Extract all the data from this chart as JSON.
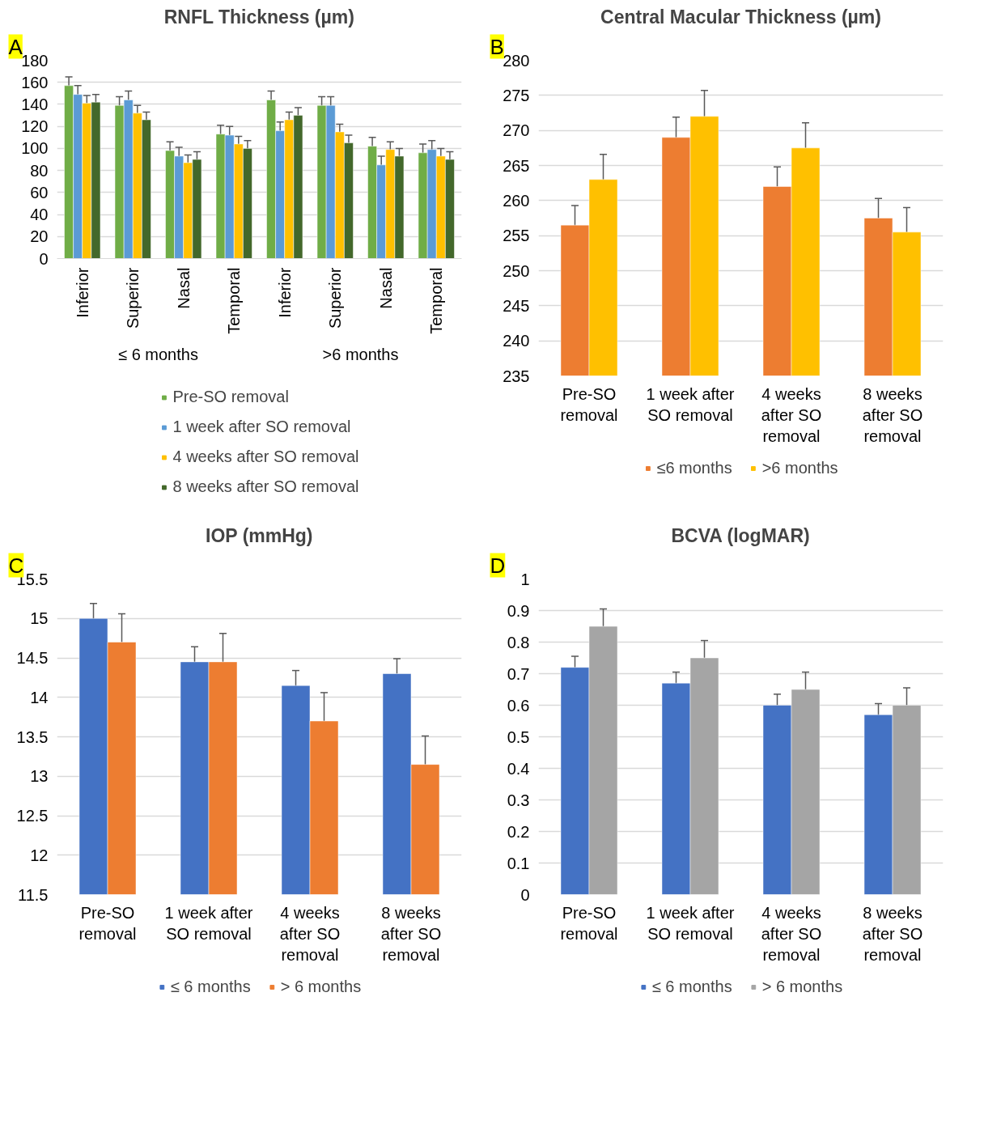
{
  "chart_data": [
    {
      "type": "bar",
      "title": "RNFL Thickness (µm)",
      "categories": [
        "Inferior",
        "Superior",
        "Nasal",
        "Temporal",
        "Inferior",
        "Superior",
        "Nasal",
        "Temporal"
      ],
      "annotations": [
        "A",
        "≤ 6 months",
        ">6 months"
      ],
      "ylim": [
        0,
        180
      ],
      "yticks": [
        0,
        20,
        40,
        60,
        80,
        100,
        120,
        140,
        160,
        180
      ],
      "grid": "y",
      "legend": "bottom",
      "series": [
        {
          "name": "Pre-SO removal",
          "color": "#70ad47",
          "values": [
            157,
            139,
            98,
            113,
            144,
            139,
            102,
            96
          ],
          "errors": [
            8,
            8,
            8,
            8,
            8,
            8,
            8,
            8
          ]
        },
        {
          "name": "1 week after SO removal",
          "color": "#5b9bd5",
          "values": [
            149,
            144,
            93,
            112,
            116,
            139,
            85,
            99
          ],
          "errors": [
            8,
            8,
            8,
            8,
            8,
            8,
            8,
            8
          ]
        },
        {
          "name": "4 weeks after SO removal",
          "color": "#ffc000",
          "values": [
            141,
            132,
            87,
            104,
            126,
            115,
            99,
            93
          ],
          "errors": [
            7,
            7,
            7,
            7,
            7,
            7,
            7,
            7
          ]
        },
        {
          "name": "8 weeks after SO removal",
          "color": "#43682b",
          "values": [
            142,
            126,
            90,
            100,
            130,
            105,
            93,
            90
          ],
          "errors": [
            7,
            7,
            7,
            7,
            7,
            7,
            7,
            7
          ]
        }
      ]
    },
    {
      "type": "bar",
      "title": "Central Macular Thickness (µm)",
      "categories": [
        "Pre-SO removal",
        "1 week after SO removal",
        "4 weeks after SO removal",
        "8 weeks after SO removal"
      ],
      "annotations": [
        "B"
      ],
      "ylim": [
        235,
        280
      ],
      "yticks": [
        235,
        240,
        245,
        250,
        255,
        260,
        265,
        270,
        275,
        280
      ],
      "grid": "y",
      "legend": "bottom",
      "series": [
        {
          "name": "≤6 months",
          "color": "#ed7d31",
          "values": [
            256.5,
            269,
            262,
            257.5
          ],
          "errors": [
            2.8,
            2.9,
            2.8,
            2.8
          ]
        },
        {
          "name": ">6 months",
          "color": "#ffc000",
          "values": [
            263,
            272,
            267.5,
            255.5
          ],
          "errors": [
            3.6,
            3.7,
            3.6,
            3.5
          ]
        }
      ]
    },
    {
      "type": "bar",
      "title": "IOP (mmHg)",
      "categories": [
        "Pre-SO removal",
        "1 week after SO removal",
        "4 weeks after SO removal",
        "8 weeks after SO removal"
      ],
      "annotations": [
        "C"
      ],
      "ylim": [
        11.5,
        15.5
      ],
      "yticks": [
        11.5,
        12,
        12.5,
        13,
        13.5,
        14,
        14.5,
        15,
        15.5
      ],
      "grid": "y",
      "legend": "bottom",
      "series": [
        {
          "name": "≤ 6 months",
          "color": "#4472c4",
          "values": [
            15,
            14.45,
            14.15,
            14.3
          ],
          "errors": [
            0.19,
            0.19,
            0.19,
            0.19
          ]
        },
        {
          "name": "> 6 months",
          "color": "#ed7d31",
          "values": [
            14.7,
            14.45,
            13.7,
            13.15
          ],
          "errors": [
            0.36,
            0.36,
            0.36,
            0.36
          ]
        }
      ]
    },
    {
      "type": "bar",
      "title": "BCVA (logMAR)",
      "categories": [
        "Pre-SO removal",
        "1 week after SO removal",
        "4 weeks after SO removal",
        "8 weeks after SO removal"
      ],
      "annotations": [
        "D"
      ],
      "ylim": [
        0,
        1
      ],
      "yticks": [
        0,
        0.1,
        0.2,
        0.3,
        0.4,
        0.5,
        0.6,
        0.7,
        0.8,
        0.9,
        1
      ],
      "grid": "y",
      "legend": "bottom",
      "series": [
        {
          "name": "≤ 6 months",
          "color": "#4472c4",
          "values": [
            0.72,
            0.67,
            0.6,
            0.57
          ],
          "errors": [
            0.035,
            0.035,
            0.035,
            0.035
          ]
        },
        {
          "name": "> 6 months",
          "color": "#a5a5a5",
          "values": [
            0.85,
            0.75,
            0.65,
            0.6
          ],
          "errors": [
            0.055,
            0.055,
            0.055,
            0.055
          ]
        }
      ]
    }
  ]
}
